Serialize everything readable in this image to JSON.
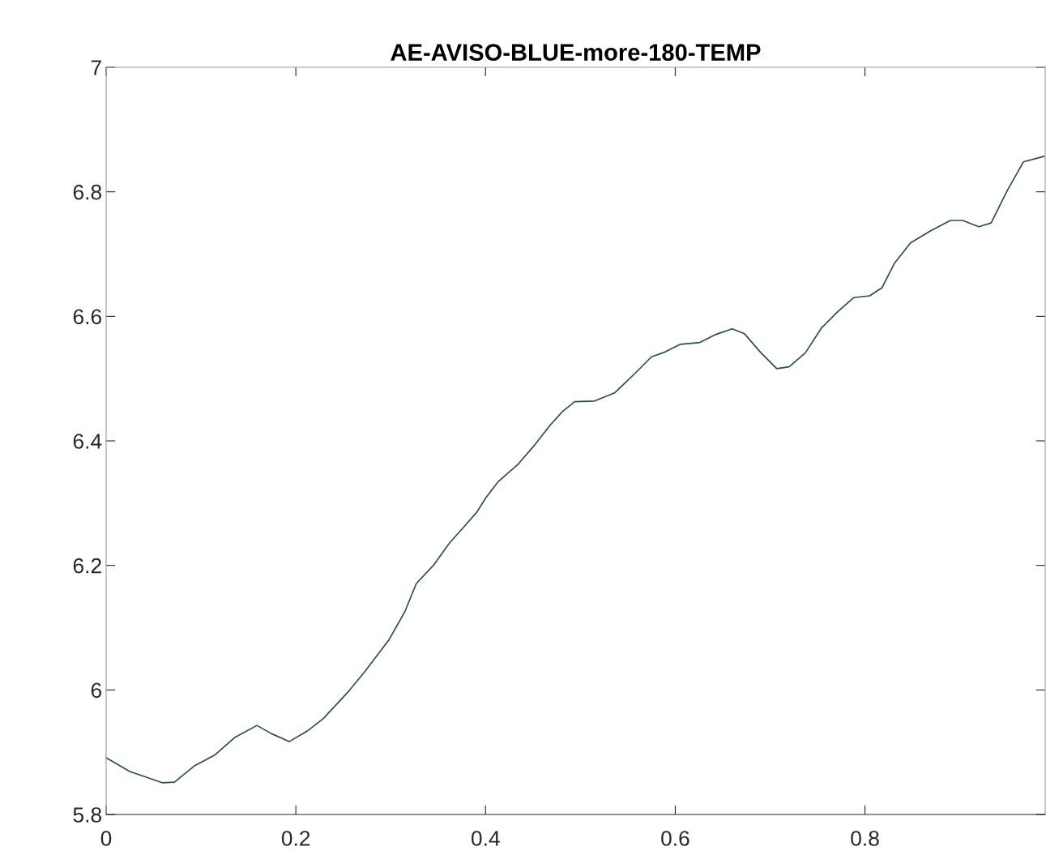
{
  "chart_data": {
    "type": "line",
    "title": "AE-AVISO-BLUE-more-180-TEMP",
    "xlim": [
      0,
      0.99
    ],
    "xticks": [
      0,
      0.2,
      0.4,
      0.6,
      0.8
    ],
    "ylim": [
      5.8,
      7
    ],
    "yticks": [
      5.8,
      6,
      6.2,
      6.4,
      6.6,
      6.8,
      7
    ],
    "grid": false,
    "legend": false,
    "series": [
      {
        "color": "#2b4a5a",
        "x": [
          0,
          0.025,
          0.059,
          0.072,
          0.093,
          0.114,
          0.136,
          0.159,
          0.174,
          0.193,
          0.212,
          0.229,
          0.254,
          0.272,
          0.298,
          0.315,
          0.327,
          0.345,
          0.362,
          0.379,
          0.391,
          0.4,
          0.413,
          0.434,
          0.451,
          0.468,
          0.481,
          0.494,
          0.515,
          0.536,
          0.558,
          0.575,
          0.588,
          0.605,
          0.626,
          0.643,
          0.66,
          0.673,
          0.69,
          0.707,
          0.72,
          0.737,
          0.754,
          0.771,
          0.788,
          0.805,
          0.818,
          0.831,
          0.848,
          0.869,
          0.89,
          0.903,
          0.92,
          0.933,
          0.95,
          0.967,
          0.989
        ],
        "values": [
          5.891,
          5.869,
          5.851,
          5.852,
          5.878,
          5.895,
          5.924,
          5.943,
          5.93,
          5.917,
          5.934,
          5.954,
          5.995,
          6.028,
          6.08,
          6.126,
          6.171,
          6.2,
          6.236,
          6.265,
          6.286,
          6.308,
          6.334,
          6.362,
          6.392,
          6.425,
          6.447,
          6.463,
          6.464,
          6.477,
          6.509,
          6.535,
          6.542,
          6.555,
          6.558,
          6.571,
          6.58,
          6.572,
          6.542,
          6.516,
          6.519,
          6.541,
          6.581,
          6.607,
          6.63,
          6.633,
          6.646,
          6.685,
          6.718,
          6.737,
          6.754,
          6.754,
          6.744,
          6.75,
          6.802,
          6.848,
          6.857
        ]
      }
    ]
  }
}
